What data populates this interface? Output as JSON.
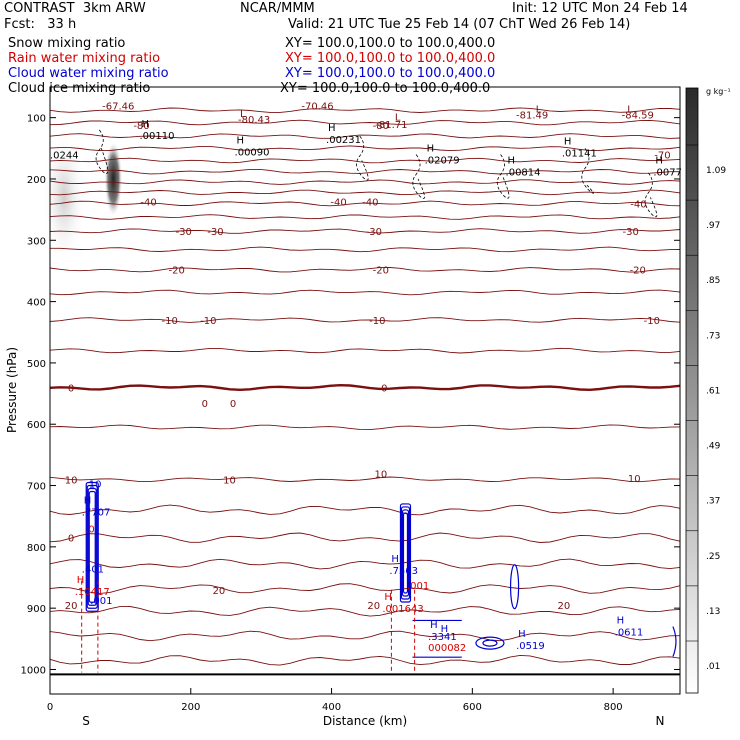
{
  "header": {
    "experiment": "CONTRAST",
    "model": "3km ARW",
    "fcst_label": "Fcst:",
    "fcst_value": "33 h",
    "center": "NCAR/MMM",
    "init": "Init: 12 UTC Mon 24 Feb 14",
    "valid": "Valid: 21 UTC Tue 25 Feb 14 (07 ChT Wed 26 Feb 14)"
  },
  "fields": [
    {
      "name": "Snow mixing ratio",
      "xy": "",
      "color": "#000000"
    },
    {
      "name": "Rain water mixing ratio",
      "xy": "XY= 100.0,100.0 to 100.0,400.0",
      "color": "#d40000"
    },
    {
      "name": "Cloud water mixing ratio",
      "xy": "XY= 100.0,100.0 to 100.0,400.0",
      "color": "#0000d0"
    },
    {
      "name": "Cloud ice mixing ratio",
      "xy": "XY= 100.0,100.0 to 100.0,400.0",
      "color": "#000000"
    }
  ],
  "snow_xy": "XY= 100.0,100.0 to 100.0,400.0",
  "colors": {
    "temperature": "#7a1010",
    "rain": "#d40000",
    "cloud": "#0000d0",
    "ice": "#000000",
    "snow": "#333333"
  },
  "chart_data": {
    "type": "cross-section",
    "title": "Snow mixing ratio / Rain / Cloud water / Cloud ice mixing ratio",
    "xlabel": "Distance (km)",
    "ylabel": "Pressure (hPa)",
    "xlim": [
      0,
      895
    ],
    "ylim": [
      1040,
      50
    ],
    "x_ticks": [
      0,
      200,
      400,
      600,
      800
    ],
    "y_ticks": [
      100,
      200,
      300,
      400,
      500,
      600,
      700,
      800,
      900,
      1000
    ],
    "end_labels": {
      "left": "S",
      "right": "N"
    },
    "colorbar": {
      "units": "g kg⁻¹",
      "ticks": [
        ".01",
        ".13",
        ".25",
        ".37",
        ".49",
        ".61",
        ".73",
        ".85",
        ".97",
        "1.09"
      ]
    },
    "temperature_labels": [
      {
        "x": 97,
        "p": 80,
        "text": "-67.46"
      },
      {
        "x": 380,
        "p": 80,
        "text": "-70.46"
      },
      {
        "x": 290,
        "p": 102,
        "text": "-80.43"
      },
      {
        "x": 485,
        "p": 110,
        "text": "-81.71"
      },
      {
        "x": 685,
        "p": 95,
        "text": "-81.49"
      },
      {
        "x": 835,
        "p": 95,
        "text": "-84.59"
      },
      {
        "x": 130,
        "p": 112,
        "text": "-80"
      },
      {
        "x": 470,
        "p": 112,
        "text": "-80"
      },
      {
        "x": 870,
        "p": 160,
        "text": "-70"
      },
      {
        "x": 140,
        "p": 237,
        "text": "-40"
      },
      {
        "x": 410,
        "p": 237,
        "text": "-40"
      },
      {
        "x": 455,
        "p": 237,
        "text": "-40"
      },
      {
        "x": 836,
        "p": 240,
        "text": "-40"
      },
      {
        "x": 190,
        "p": 285,
        "text": "-30"
      },
      {
        "x": 235,
        "p": 285,
        "text": "-30"
      },
      {
        "x": 460,
        "p": 285,
        "text": "-30"
      },
      {
        "x": 825,
        "p": 285,
        "text": "-30"
      },
      {
        "x": 180,
        "p": 348,
        "text": "-20"
      },
      {
        "x": 470,
        "p": 348,
        "text": "-20"
      },
      {
        "x": 835,
        "p": 348,
        "text": "-20"
      },
      {
        "x": 170,
        "p": 430,
        "text": "-10"
      },
      {
        "x": 225,
        "p": 430,
        "text": "-10"
      },
      {
        "x": 465,
        "p": 430,
        "text": "-10"
      },
      {
        "x": 855,
        "p": 430,
        "text": "-10"
      },
      {
        "x": 30,
        "p": 540,
        "text": "0"
      },
      {
        "x": 220,
        "p": 565,
        "text": "0"
      },
      {
        "x": 260,
        "p": 565,
        "text": "0"
      },
      {
        "x": 475,
        "p": 540,
        "text": "0"
      },
      {
        "x": 30,
        "p": 690,
        "text": "10"
      },
      {
        "x": 255,
        "p": 690,
        "text": "10"
      },
      {
        "x": 470,
        "p": 680,
        "text": "10"
      },
      {
        "x": 830,
        "p": 688,
        "text": "10"
      },
      {
        "x": 30,
        "p": 785,
        "text": "0"
      },
      {
        "x": 240,
        "p": 870,
        "text": "20"
      },
      {
        "x": 460,
        "p": 895,
        "text": "20"
      },
      {
        "x": 730,
        "p": 895,
        "text": "20"
      },
      {
        "x": 30,
        "p": 895,
        "text": "20"
      }
    ],
    "temperature_levels_p": [
      88,
      108,
      130,
      150,
      170,
      188,
      205,
      222,
      240,
      262,
      285,
      315,
      348,
      385,
      430,
      480,
      540,
      605,
      690,
      740,
      785,
      828,
      868,
      905,
      945,
      985
    ],
    "freezing_level_p": 540,
    "maxmin_labels": [
      {
        "x": 130,
        "p": 128,
        "type": "H",
        "value": ".00110",
        "color": "#000000"
      },
      {
        "x": 265,
        "p": 155,
        "type": "H",
        "value": ".00090",
        "color": "#000000"
      },
      {
        "x": 395,
        "p": 135,
        "type": "H",
        "value": ".00231",
        "color": "#000000"
      },
      {
        "x": 535,
        "p": 168,
        "type": "H",
        "value": ".02079",
        "color": "#000000"
      },
      {
        "x": 650,
        "p": 188,
        "type": "H",
        "value": ".00814",
        "color": "#000000"
      },
      {
        "x": 730,
        "p": 157,
        "type": "H",
        "value": ".01141",
        "color": "#000000"
      },
      {
        "x": 860,
        "p": 188,
        "type": "H",
        "value": ".0077",
        "color": "#000000"
      },
      {
        "x": 0,
        "p": 160,
        "type": "",
        "value": ".0244",
        "color": "#000000"
      },
      {
        "x": 48,
        "p": 742,
        "type": "H",
        "value": ".7707",
        "color": "#0000d0"
      },
      {
        "x": 48,
        "p": 835,
        "type": "",
        "value": ".401",
        "color": "#0000d0"
      },
      {
        "x": 38,
        "p": 872,
        "type": "H",
        "value": ".10417",
        "color": "#d40000"
      },
      {
        "x": 60,
        "p": 887,
        "type": "",
        "value": ".001",
        "color": "#0000d0"
      },
      {
        "x": 485,
        "p": 838,
        "type": "H",
        "value": ".7563",
        "color": "#0000d0"
      },
      {
        "x": 510,
        "p": 862,
        "type": "",
        "value": ".001",
        "color": "#d40000"
      },
      {
        "x": 475,
        "p": 900,
        "type": "H",
        "value": ".001643",
        "color": "#d40000"
      },
      {
        "x": 540,
        "p": 945,
        "type": "H",
        "value": ".3341",
        "color": "#0000d0"
      },
      {
        "x": 540,
        "p": 963,
        "type": "",
        "value": "000082",
        "color": "#d40000"
      },
      {
        "x": 665,
        "p": 960,
        "type": "H",
        "value": ".0519",
        "color": "#0000d0"
      },
      {
        "x": 805,
        "p": 938,
        "type": "H",
        "value": ".0611",
        "color": "#0000d0"
      }
    ],
    "misc_labels": [
      {
        "x": 50,
        "p": 770,
        "text": ".0",
        "color": "#d40000"
      },
      {
        "x": 555,
        "p": 932,
        "text": "H",
        "color": "#0000d0"
      },
      {
        "x": 55,
        "p": 697,
        "text": "10",
        "color": "#0000d0"
      }
    ]
  }
}
